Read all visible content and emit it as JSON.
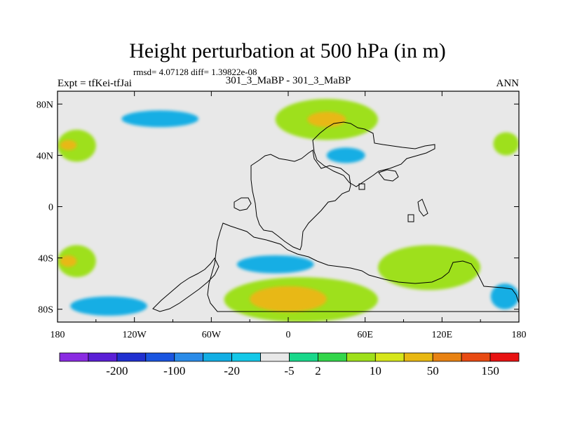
{
  "chart_data": {
    "type": "heatmap",
    "title": "Height perturbation at 500 hPa (in m)",
    "stats_text": "rmsd= 4.07128 diff= 1.39822e-08",
    "left_label": "Expt = tfKei-tfJai",
    "center_label": "301_3_MaBP - 301_3_MaBP",
    "right_label": "ANN",
    "x_ticks": [
      "180",
      "120W",
      "60W",
      "0",
      "60E",
      "120E",
      "180"
    ],
    "x_tick_values": [
      -180,
      -120,
      -60,
      0,
      60,
      120,
      180
    ],
    "y_ticks": [
      "80N",
      "40N",
      "0",
      "40S",
      "80S"
    ],
    "y_tick_values": [
      80,
      40,
      0,
      -40,
      -80
    ],
    "xlim": [
      -180,
      180
    ],
    "ylim": [
      -90,
      90
    ],
    "colorbar": {
      "labels": [
        "-200",
        "-100",
        "-20",
        "-5",
        "2",
        "10",
        "50",
        "150"
      ],
      "colors": [
        "#8a2be2",
        "#5a1fd6",
        "#2030d0",
        "#1a55e0",
        "#2a8be8",
        "#12aee4",
        "#14c8e8",
        "#e8e8e8",
        "#18d88a",
        "#32d64a",
        "#9ee01a",
        "#d6e61a",
        "#e8b812",
        "#e88212",
        "#e84a12",
        "#e81212"
      ]
    },
    "regions": [
      {
        "level": "-5",
        "lon": [
          -160,
          -40
        ],
        "lat": [
          57,
          85
        ]
      },
      {
        "level": "-20",
        "lon": [
          -130,
          -70
        ],
        "lat": [
          62,
          75
        ]
      },
      {
        "level": "10",
        "lon": [
          -180,
          -150
        ],
        "lat": [
          35,
          60
        ]
      },
      {
        "level": "50",
        "lon": [
          -178,
          -165
        ],
        "lat": [
          44,
          52
        ]
      },
      {
        "level": "10",
        "lon": [
          160,
          180
        ],
        "lat": [
          40,
          58
        ]
      },
      {
        "level": "-5",
        "lon": [
          20,
          90
        ],
        "lat": [
          28,
          56
        ]
      },
      {
        "level": "-20",
        "lon": [
          30,
          60
        ],
        "lat": [
          34,
          46
        ]
      },
      {
        "level": "10",
        "lon": [
          -10,
          70
        ],
        "lat": [
          52,
          84
        ]
      },
      {
        "level": "50",
        "lon": [
          15,
          45
        ],
        "lat": [
          62,
          74
        ]
      },
      {
        "level": "10",
        "lon": [
          -180,
          -150
        ],
        "lat": [
          -55,
          -30
        ]
      },
      {
        "level": "50",
        "lon": [
          -178,
          -165
        ],
        "lat": [
          -47,
          -38
        ]
      },
      {
        "level": "-5",
        "lon": [
          -60,
          60
        ],
        "lat": [
          -62,
          -28
        ]
      },
      {
        "level": "-20",
        "lon": [
          -40,
          20
        ],
        "lat": [
          -52,
          -38
        ]
      },
      {
        "level": "10",
        "lon": [
          70,
          150
        ],
        "lat": [
          -65,
          -30
        ]
      },
      {
        "level": "-5",
        "lon": [
          -180,
          -90
        ],
        "lat": [
          -90,
          -55
        ]
      },
      {
        "level": "-20",
        "lon": [
          -170,
          -110
        ],
        "lat": [
          -85,
          -70
        ]
      },
      {
        "level": "10",
        "lon": [
          -50,
          70
        ],
        "lat": [
          -90,
          -55
        ]
      },
      {
        "level": "50",
        "lon": [
          -30,
          30
        ],
        "lat": [
          -82,
          -62
        ]
      },
      {
        "level": "-5",
        "lon": [
          140,
          180
        ],
        "lat": [
          -90,
          -52
        ]
      },
      {
        "level": "-20",
        "lon": [
          158,
          180
        ],
        "lat": [
          -80,
          -60
        ]
      }
    ]
  }
}
